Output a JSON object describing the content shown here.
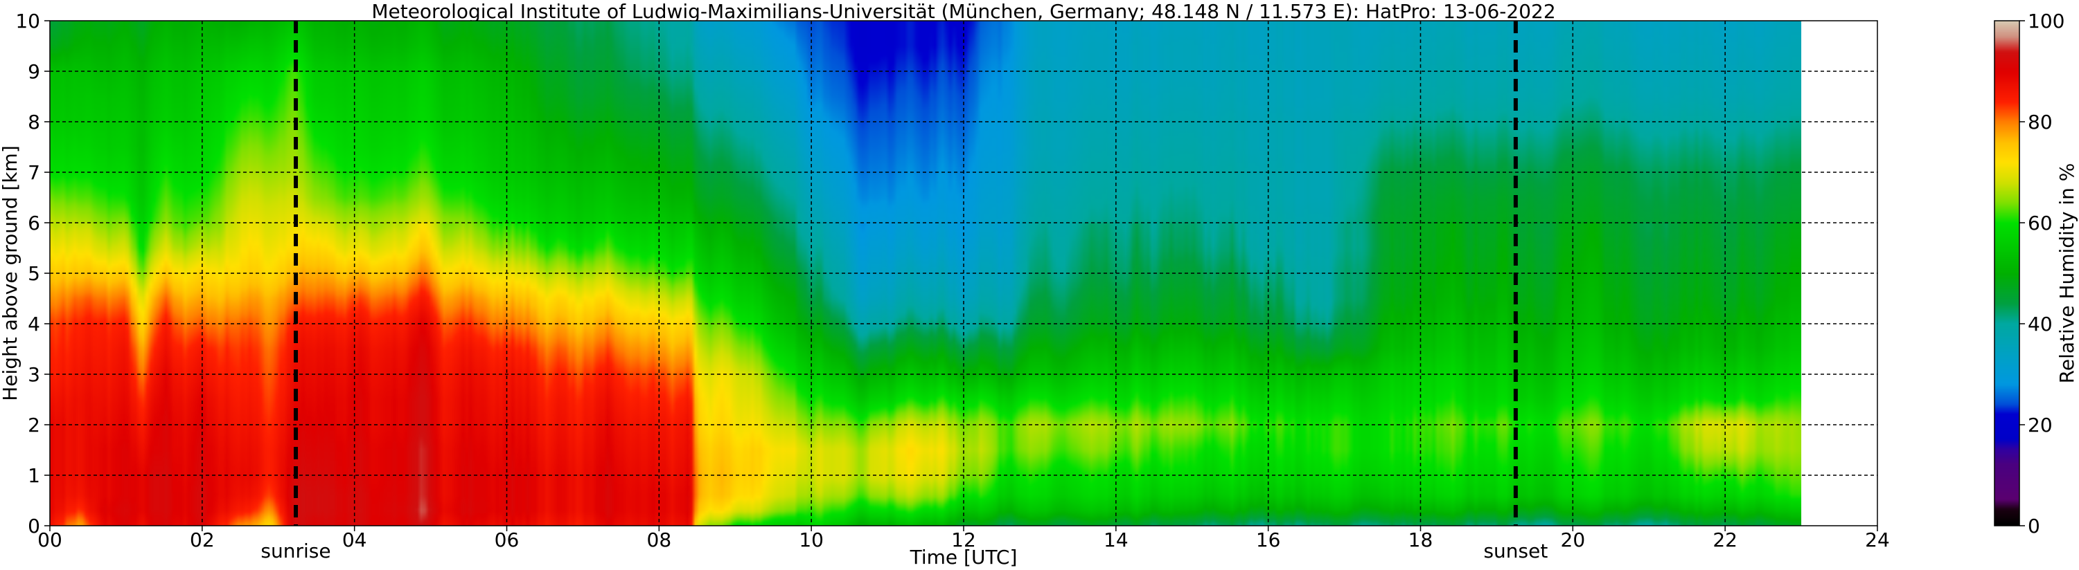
{
  "chart_data": {
    "type": "heatmap",
    "title": "Meteorological Institute of Ludwig-Maximilians-Universität (München, Germany; 48.148 N / 11.573 E):    HatPro: 13-06-2022",
    "xlabel": "Time [UTC]",
    "ylabel": "Height above ground [km]",
    "xlim": [
      0,
      24
    ],
    "ylim": [
      0,
      10
    ],
    "x_ticks": [
      "00",
      "02",
      "04",
      "06",
      "08",
      "10",
      "12",
      "14",
      "16",
      "18",
      "20",
      "22",
      "24"
    ],
    "y_ticks": [
      "0",
      "1",
      "2",
      "3",
      "4",
      "5",
      "6",
      "7",
      "8",
      "9",
      "10"
    ],
    "grid": true,
    "data_end_hour": 23.0,
    "markers": [
      {
        "label": "sunrise",
        "hour": 3.23
      },
      {
        "label": "sunset",
        "hour": 19.25
      }
    ],
    "colorbar": {
      "label": "Relative Humidity in %",
      "range": [
        0,
        100
      ],
      "ticks": [
        "0",
        "20",
        "40",
        "60",
        "80",
        "100"
      ],
      "stops": [
        {
          "v": 0,
          "color": "#000000"
        },
        {
          "v": 3,
          "color": "#1a0010"
        },
        {
          "v": 5,
          "color": "#5a0070"
        },
        {
          "v": 12,
          "color": "#4a0080"
        },
        {
          "v": 15,
          "color": "#3000a0"
        },
        {
          "v": 17,
          "color": "#0000c8"
        },
        {
          "v": 22,
          "color": "#0000d0"
        },
        {
          "v": 24,
          "color": "#0050d8"
        },
        {
          "v": 28,
          "color": "#0098e0"
        },
        {
          "v": 33,
          "color": "#00a0c8"
        },
        {
          "v": 40,
          "color": "#00a8a0"
        },
        {
          "v": 44,
          "color": "#00a040"
        },
        {
          "v": 50,
          "color": "#00b000"
        },
        {
          "v": 55,
          "color": "#00c800"
        },
        {
          "v": 60,
          "color": "#00e000"
        },
        {
          "v": 64,
          "color": "#80e000"
        },
        {
          "v": 68,
          "color": "#d0e000"
        },
        {
          "v": 72,
          "color": "#ffe000"
        },
        {
          "v": 76,
          "color": "#ffc000"
        },
        {
          "v": 80,
          "color": "#ff8000"
        },
        {
          "v": 84,
          "color": "#ff2000"
        },
        {
          "v": 90,
          "color": "#e00000"
        },
        {
          "v": 94,
          "color": "#d01010"
        },
        {
          "v": 97,
          "color": "#d09080"
        },
        {
          "v": 100,
          "color": "#d8c8b0"
        }
      ]
    },
    "humidity_profile_percent": {
      "height_km": [
        0,
        0.3,
        0.6,
        1,
        1.5,
        2,
        2.5,
        3,
        3.5,
        4,
        4.5,
        5,
        5.5,
        6,
        6.5,
        7,
        7.5,
        8,
        8.5,
        9,
        9.5,
        10
      ],
      "profiles": [
        {
          "hour": 0.0,
          "rh": [
            88,
            90,
            90,
            90,
            90,
            90,
            88,
            86,
            85,
            84,
            80,
            76,
            72,
            68,
            64,
            60,
            58,
            56,
            55,
            54,
            48,
            45
          ]
        },
        {
          "hour": 0.4,
          "rh": [
            76,
            82,
            85,
            86,
            86,
            86,
            86,
            85,
            84,
            83,
            80,
            74,
            70,
            66,
            62,
            59,
            57,
            55,
            54,
            53,
            50,
            48
          ]
        },
        {
          "hour": 0.7,
          "rh": [
            88,
            90,
            89,
            89,
            89,
            88,
            87,
            86,
            85,
            84,
            80,
            74,
            68,
            64,
            61,
            58,
            56,
            55,
            54,
            52,
            50,
            48
          ]
        },
        {
          "hour": 1.0,
          "rh": [
            90,
            91,
            90,
            90,
            90,
            89,
            88,
            87,
            86,
            84,
            80,
            74,
            68,
            64,
            60,
            58,
            56,
            55,
            54,
            53,
            51,
            49
          ]
        },
        {
          "hour": 1.2,
          "rh": [
            86,
            88,
            88,
            88,
            86,
            84,
            82,
            79,
            76,
            72,
            68,
            62,
            58,
            56,
            54,
            53,
            52,
            52,
            51,
            50,
            48,
            46
          ]
        },
        {
          "hour": 1.5,
          "rh": [
            90,
            91,
            91,
            91,
            90,
            90,
            89,
            88,
            86,
            84,
            80,
            74,
            68,
            64,
            62,
            60,
            58,
            56,
            55,
            54,
            52,
            50
          ]
        },
        {
          "hour": 2.0,
          "rh": [
            90,
            91,
            91,
            90,
            90,
            89,
            88,
            86,
            84,
            80,
            76,
            72,
            66,
            62,
            60,
            58,
            57,
            56,
            55,
            54,
            52,
            50
          ]
        },
        {
          "hour": 2.5,
          "rh": [
            80,
            86,
            88,
            89,
            88,
            87,
            86,
            85,
            84,
            82,
            78,
            74,
            72,
            70,
            68,
            66,
            64,
            62,
            60,
            58,
            54,
            50
          ]
        },
        {
          "hour": 2.9,
          "rh": [
            74,
            80,
            84,
            86,
            86,
            85,
            84,
            83,
            82,
            80,
            78,
            74,
            72,
            70,
            68,
            66,
            64,
            62,
            60,
            58,
            55,
            52
          ]
        },
        {
          "hour": 3.2,
          "rh": [
            92,
            92,
            92,
            91,
            90,
            89,
            88,
            87,
            86,
            84,
            80,
            76,
            72,
            70,
            68,
            66,
            65,
            64,
            63,
            62,
            58,
            54
          ]
        },
        {
          "hour": 3.5,
          "rh": [
            90,
            92,
            92,
            91,
            90,
            89,
            88,
            87,
            86,
            84,
            80,
            76,
            72,
            68,
            64,
            62,
            60,
            58,
            56,
            55,
            52,
            50
          ]
        },
        {
          "hour": 4.0,
          "rh": [
            92,
            92,
            92,
            91,
            91,
            90,
            90,
            89,
            88,
            86,
            82,
            76,
            70,
            66,
            62,
            60,
            58,
            57,
            56,
            55,
            52,
            50
          ]
        },
        {
          "hour": 5.0,
          "rh": [
            90,
            92,
            91,
            91,
            91,
            90,
            90,
            89,
            88,
            86,
            82,
            77,
            72,
            68,
            64,
            61,
            59,
            57,
            56,
            55,
            52,
            50
          ]
        },
        {
          "hour": 6.0,
          "rh": [
            88,
            90,
            90,
            90,
            89,
            88,
            87,
            86,
            84,
            80,
            76,
            70,
            64,
            60,
            57,
            55,
            54,
            53,
            52,
            51,
            49,
            47
          ]
        },
        {
          "hour": 7.0,
          "rh": [
            86,
            88,
            88,
            88,
            87,
            86,
            85,
            83,
            80,
            76,
            72,
            66,
            60,
            56,
            54,
            52,
            50,
            48,
            46,
            45,
            44,
            43
          ]
        },
        {
          "hour": 8.0,
          "rh": [
            88,
            89,
            89,
            88,
            87,
            86,
            84,
            82,
            78,
            74,
            68,
            62,
            58,
            55,
            52,
            50,
            48,
            46,
            44,
            42,
            41,
            40
          ]
        },
        {
          "hour": 8.4,
          "rh": [
            86,
            88,
            88,
            87,
            86,
            85,
            83,
            80,
            76,
            72,
            66,
            60,
            56,
            53,
            50,
            48,
            46,
            44,
            42,
            40,
            39,
            38
          ]
        },
        {
          "hour": 8.5,
          "rh": [
            68,
            74,
            76,
            76,
            75,
            73,
            72,
            70,
            67,
            64,
            60,
            56,
            53,
            50,
            47,
            45,
            43,
            41,
            39,
            37,
            35,
            33
          ]
        },
        {
          "hour": 9.0,
          "rh": [
            60,
            70,
            74,
            75,
            74,
            72,
            71,
            70,
            66,
            62,
            58,
            55,
            52,
            49,
            46,
            44,
            42,
            40,
            38,
            36,
            34,
            32
          ]
        },
        {
          "hour": 9.8,
          "rh": [
            56,
            64,
            68,
            70,
            72,
            68,
            64,
            60,
            56,
            52,
            50,
            47,
            44,
            42,
            40,
            38,
            36,
            34,
            32,
            30,
            28,
            26
          ]
        },
        {
          "hour": 10.0,
          "rh": [
            56,
            60,
            64,
            66,
            66,
            62,
            58,
            54,
            50,
            46,
            42,
            40,
            38,
            36,
            34,
            32,
            30,
            28,
            26,
            25,
            24,
            23
          ]
        },
        {
          "hour": 10.8,
          "rh": [
            52,
            60,
            66,
            70,
            70,
            66,
            58,
            52,
            46,
            40,
            36,
            34,
            32,
            30,
            28,
            27,
            26,
            25,
            24,
            23,
            22,
            22
          ]
        },
        {
          "hour": 11.5,
          "rh": [
            52,
            60,
            66,
            70,
            72,
            68,
            60,
            54,
            48,
            42,
            38,
            35,
            32,
            30,
            28,
            27,
            26,
            25,
            24,
            23,
            22,
            22
          ]
        },
        {
          "hour": 12.0,
          "rh": [
            48,
            56,
            62,
            66,
            68,
            66,
            60,
            52,
            46,
            40,
            36,
            34,
            32,
            30,
            29,
            28,
            27,
            26,
            25,
            24,
            23,
            22
          ]
        },
        {
          "hour": 13.0,
          "rh": [
            44,
            52,
            56,
            58,
            62,
            64,
            58,
            52,
            48,
            44,
            42,
            40,
            39,
            38,
            37,
            36,
            35,
            35,
            34,
            34,
            33,
            33
          ]
        },
        {
          "hour": 14.0,
          "rh": [
            44,
            52,
            56,
            58,
            62,
            64,
            58,
            54,
            50,
            46,
            44,
            42,
            41,
            40,
            39,
            38,
            37,
            36,
            35,
            34,
            34,
            33
          ]
        },
        {
          "hour": 15.0,
          "rh": [
            42,
            50,
            55,
            58,
            60,
            64,
            60,
            56,
            52,
            48,
            46,
            44,
            42,
            41,
            40,
            39,
            38,
            37,
            36,
            35,
            35,
            34
          ]
        },
        {
          "hour": 16.0,
          "rh": [
            42,
            50,
            55,
            58,
            60,
            62,
            58,
            54,
            50,
            46,
            44,
            42,
            40,
            39,
            38,
            38,
            37,
            37,
            36,
            36,
            35,
            35
          ]
        },
        {
          "hour": 16.8,
          "rh": [
            42,
            50,
            55,
            58,
            60,
            60,
            56,
            52,
            44,
            40,
            38,
            38,
            37,
            37,
            36,
            36,
            36,
            36,
            35,
            35,
            35,
            35
          ]
        },
        {
          "hour": 17.5,
          "rh": [
            42,
            50,
            55,
            58,
            60,
            60,
            58,
            56,
            52,
            50,
            48,
            47,
            46,
            46,
            45,
            44,
            42,
            40,
            38,
            37,
            36,
            35
          ]
        },
        {
          "hour": 19.0,
          "rh": [
            42,
            50,
            56,
            58,
            60,
            62,
            58,
            56,
            54,
            52,
            50,
            49,
            48,
            47,
            46,
            44,
            42,
            40,
            38,
            37,
            36,
            35
          ]
        },
        {
          "hour": 20.0,
          "rh": [
            42,
            50,
            56,
            58,
            60,
            62,
            58,
            55,
            53,
            51,
            50,
            49,
            48,
            47,
            46,
            45,
            43,
            41,
            39,
            38,
            37,
            36
          ]
        },
        {
          "hour": 21.0,
          "rh": [
            42,
            50,
            56,
            58,
            60,
            62,
            58,
            55,
            52,
            50,
            49,
            48,
            47,
            46,
            45,
            44,
            42,
            40,
            38,
            37,
            36,
            35
          ]
        },
        {
          "hour": 22.0,
          "rh": [
            44,
            52,
            58,
            62,
            68,
            70,
            60,
            56,
            52,
            50,
            48,
            47,
            46,
            45,
            44,
            43,
            41,
            39,
            37,
            36,
            35,
            34
          ]
        },
        {
          "hour": 23.0,
          "rh": [
            44,
            52,
            58,
            60,
            62,
            62,
            58,
            55,
            52,
            50,
            48,
            47,
            46,
            45,
            44,
            43,
            41,
            39,
            37,
            36,
            35,
            34
          ]
        }
      ]
    }
  }
}
